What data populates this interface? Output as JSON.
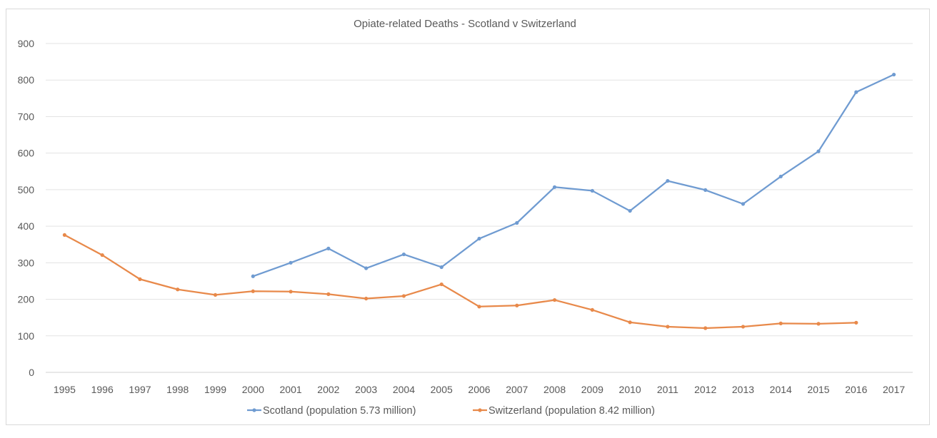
{
  "chart_data": {
    "type": "line",
    "title": "Opiate-related Deaths - Scotland v Switzerland",
    "xlabel": "",
    "ylabel": "",
    "ylim": [
      0,
      900
    ],
    "yticks": [
      "0",
      "100",
      "200",
      "300",
      "400",
      "500",
      "600",
      "700",
      "800",
      "900"
    ],
    "categories": [
      "1995",
      "1996",
      "1997",
      "1998",
      "1999",
      "2000",
      "2001",
      "2002",
      "2003",
      "2004",
      "2005",
      "2006",
      "2007",
      "2008",
      "2009",
      "2010",
      "2011",
      "2012",
      "2013",
      "2014",
      "2015",
      "2016",
      "2017"
    ],
    "grid": true,
    "legend_position": "bottom",
    "series": [
      {
        "name": "Scotland (population 5.73 million)",
        "color": "#6f9bd1",
        "values": [
          null,
          null,
          null,
          null,
          null,
          263,
          300,
          339,
          285,
          323,
          288,
          366,
          409,
          507,
          497,
          442,
          524,
          499,
          461,
          536,
          605,
          767,
          815
        ]
      },
      {
        "name": "Switzerland (population 8.42 million)",
        "color": "#e8894a",
        "values": [
          376,
          321,
          255,
          227,
          212,
          222,
          221,
          214,
          202,
          209,
          241,
          180,
          183,
          198,
          171,
          137,
          125,
          121,
          125,
          134,
          133,
          136,
          null
        ]
      }
    ]
  }
}
